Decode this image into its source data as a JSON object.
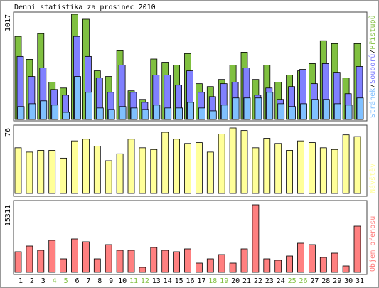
{
  "chart_data": [
    {
      "type": "bar",
      "title": "Denní statistika za prosinec 2010",
      "separator": "/",
      "ylim": [
        0,
        1017
      ],
      "yticks": [
        1017
      ],
      "series": [
        {
          "name": "Přístupů",
          "color": "#80c040",
          "values": [
            803,
            581,
            830,
            360,
            304,
            1017,
            969,
            470,
            415,
            664,
            277,
            194,
            584,
            553,
            526,
            637,
            346,
            318,
            387,
            526,
            650,
            387,
            526,
            360,
            429,
            470,
            540,
            761,
            733,
            401,
            733
          ]
        },
        {
          "name": "Souborů",
          "color": "#8080ff",
          "values": [
            609,
            415,
            498,
            290,
            235,
            803,
            609,
            401,
            263,
            526,
            263,
            166,
            429,
            429,
            332,
            470,
            263,
            221,
            346,
            360,
            498,
            235,
            304,
            194,
            318,
            484,
            346,
            540,
            456,
            249,
            512
          ]
        },
        {
          "name": "Stránek",
          "color": "#80c0ff",
          "values": [
            125,
            152,
            180,
            139,
            69,
            415,
            263,
            111,
            97,
            125,
            111,
            97,
            139,
            111,
            111,
            166,
            111,
            83,
            139,
            208,
            208,
            208,
            263,
            152,
            125,
            152,
            194,
            194,
            152,
            139,
            208
          ]
        }
      ]
    },
    {
      "type": "bar",
      "ylim": [
        0,
        76
      ],
      "yticks": [
        76
      ],
      "series": [
        {
          "name": "Návštěv",
          "color": "#ffff99",
          "values": [
            53,
            48,
            50,
            50,
            41,
            61,
            63,
            55,
            38,
            46,
            63,
            53,
            51,
            71,
            63,
            58,
            59,
            48,
            69,
            76,
            73,
            53,
            64,
            58,
            50,
            61,
            59,
            53,
            51,
            68,
            66
          ]
        }
      ]
    },
    {
      "type": "bar",
      "ylim": [
        0,
        15311
      ],
      "yticks": [
        15311
      ],
      "series": [
        {
          "name": "Objem přenosu",
          "color": "#ff8080",
          "values": [
            4674,
            5963,
            4996,
            7253,
            3062,
            7575,
            6930,
            3062,
            6286,
            4996,
            4996,
            1128,
            5641,
            4996,
            4674,
            5319,
            2095,
            3062,
            4029,
            2095,
            5319,
            15311,
            3062,
            2740,
            3707,
            6608,
            6286,
            3384,
            4351,
            1450,
            10475
          ]
        }
      ],
      "categories": [
        "1",
        "2",
        "3",
        "4",
        "5",
        "6",
        "7",
        "8",
        "9",
        "10",
        "11",
        "12",
        "13",
        "14",
        "15",
        "16",
        "17",
        "18",
        "19",
        "20",
        "21",
        "22",
        "23",
        "24",
        "25",
        "26",
        "27",
        "28",
        "29",
        "30",
        "31"
      ],
      "label_colors": [
        "#000",
        "#000",
        "#000",
        "#80c040",
        "#80c040",
        "#000",
        "#000",
        "#000",
        "#000",
        "#000",
        "#80c040",
        "#80c040",
        "#000",
        "#000",
        "#000",
        "#000",
        "#000",
        "#80c040",
        "#80c040",
        "#000",
        "#000",
        "#000",
        "#000",
        "#000",
        "#80c040",
        "#80c040",
        "#000",
        "#000",
        "#000",
        "#000",
        "#000"
      ]
    }
  ]
}
